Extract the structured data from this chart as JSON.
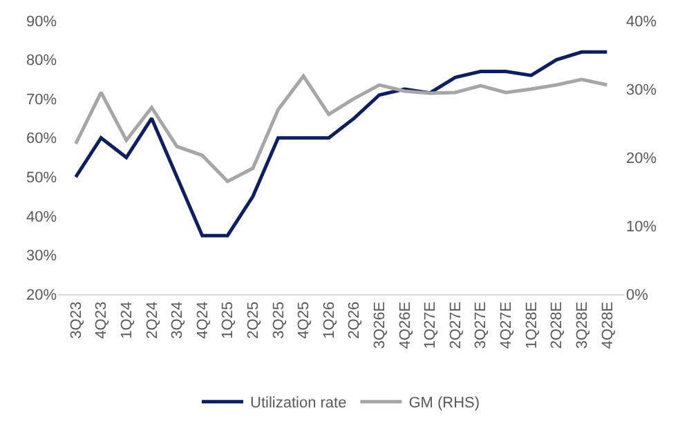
{
  "chart_data": {
    "type": "line",
    "categories": [
      "3Q23",
      "4Q23",
      "1Q24",
      "2Q24",
      "3Q24",
      "4Q24",
      "1Q25",
      "2Q25",
      "3Q25",
      "4Q25",
      "1Q26",
      "2Q26",
      "3Q26E",
      "4Q26E",
      "1Q27E",
      "2Q27E",
      "3Q27E",
      "4Q27E",
      "1Q28E",
      "2Q28E",
      "3Q28E",
      "4Q28E"
    ],
    "series": [
      {
        "name": "Utilization rate",
        "color": "#0d1f5c",
        "values": [
          50,
          60,
          55,
          65,
          50,
          35,
          35,
          45,
          60,
          60,
          60,
          65,
          71,
          72.5,
          71.5,
          75.5,
          77,
          77,
          76,
          80,
          82,
          82
        ]
      },
      {
        "name": "GM (RHS)",
        "color": "#a6a6a6",
        "axis": "y2",
        "values": [
          22,
          29.5,
          22.5,
          27.3,
          21.6,
          20.3,
          16.5,
          18.4,
          27,
          31.9,
          26.3,
          28.6,
          30.6,
          29.7,
          29.4,
          29.5,
          30.5,
          29.5,
          30,
          30.6,
          31.4,
          30.6
        ]
      }
    ],
    "ylim": [
      20,
      90
    ],
    "yticks": [
      {
        "value": 20,
        "label": "20%"
      },
      {
        "value": 30,
        "label": "30%"
      },
      {
        "value": 40,
        "label": "40%"
      },
      {
        "value": 50,
        "label": "50%"
      },
      {
        "value": 60,
        "label": "60%"
      },
      {
        "value": 70,
        "label": "70%"
      },
      {
        "value": 80,
        "label": "80%"
      },
      {
        "value": 90,
        "label": "90%"
      }
    ],
    "y2lim": [
      0,
      40
    ],
    "y2ticks": [
      {
        "value": 0,
        "label": "0%"
      },
      {
        "value": 10,
        "label": "10%"
      },
      {
        "value": 20,
        "label": "20%"
      },
      {
        "value": 30,
        "label": "30%"
      },
      {
        "value": 40,
        "label": "40%"
      }
    ],
    "legend": "bottom",
    "line_style": "solid",
    "marker": "none"
  }
}
